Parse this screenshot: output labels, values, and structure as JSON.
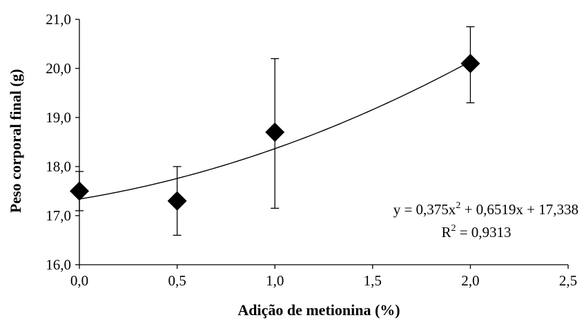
{
  "chart_data": {
    "type": "scatter",
    "xlabel": "Adição de metionina (%)",
    "ylabel": "Peso corporal final (g)",
    "xlim": [
      0,
      2.5
    ],
    "ylim": [
      16,
      21
    ],
    "x_ticks": [
      "0,0",
      "0,5",
      "1,0",
      "1,5",
      "2,0",
      "2,5"
    ],
    "y_ticks": [
      "16,0",
      "17,0",
      "18,0",
      "19,0",
      "20,0",
      "21,0"
    ],
    "grid": false,
    "series": [
      {
        "marker": "diamond",
        "color": "#000000",
        "points": [
          {
            "x": 0.0,
            "y": 17.5,
            "err_low": 17.1,
            "err_high": 17.9
          },
          {
            "x": 0.5,
            "y": 17.3,
            "err_low": 16.6,
            "err_high": 18.0
          },
          {
            "x": 1.0,
            "y": 18.7,
            "err_low": 17.15,
            "err_high": 20.2
          },
          {
            "x": 2.0,
            "y": 20.1,
            "err_low": 19.3,
            "err_high": 20.85
          }
        ]
      }
    ],
    "trendline": {
      "type": "polynomial",
      "coefficients": {
        "a": 0.375,
        "b": 0.6519,
        "c": 17.338
      },
      "x_range": [
        0,
        2
      ]
    },
    "annotation": {
      "equation_prefix": "y = 0,375x",
      "equation_exp": "2",
      "equation_suffix": " + 0,6519x + 17,338",
      "r2_prefix": "R",
      "r2_exp": "2",
      "r2_suffix": " = 0,9313"
    }
  }
}
